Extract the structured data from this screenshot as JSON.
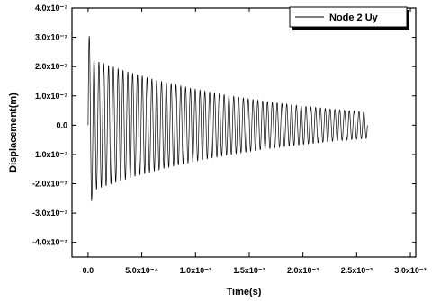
{
  "chart_data": {
    "type": "line",
    "title": "",
    "xlabel": "Time(s)",
    "ylabel": "Displacement(m)",
    "xlim": [
      -0.00015,
      0.00305
    ],
    "ylim": [
      -4.5e-07,
      4e-07
    ],
    "grid": false,
    "legend": {
      "position": "top-right",
      "entries": [
        "Node 2 Uy"
      ]
    },
    "x_ticks": [
      {
        "value": 0.0,
        "label": "0.0"
      },
      {
        "value": 0.0005,
        "label": "5.0x10⁻⁴"
      },
      {
        "value": 0.001,
        "label": "1.0x10⁻³"
      },
      {
        "value": 0.0015,
        "label": "1.5x10⁻³"
      },
      {
        "value": 0.002,
        "label": "2.0x10⁻³"
      },
      {
        "value": 0.0025,
        "label": "2.5x10⁻³"
      },
      {
        "value": 0.003,
        "label": "3.0x10⁻³"
      }
    ],
    "y_ticks": [
      {
        "value": 4e-07,
        "label": "4.0x10⁻⁷"
      },
      {
        "value": 3e-07,
        "label": "3.0x10⁻⁷"
      },
      {
        "value": 2e-07,
        "label": "2.0x10⁻⁷"
      },
      {
        "value": 1e-07,
        "label": "1.0x10⁻⁷"
      },
      {
        "value": 0.0,
        "label": "0.0"
      },
      {
        "value": -1e-07,
        "label": "-1.0x10⁻⁷"
      },
      {
        "value": -2e-07,
        "label": "-2.0x10⁻⁷"
      },
      {
        "value": -3e-07,
        "label": "-3.0x10⁻⁷"
      },
      {
        "value": -4e-07,
        "label": "-4.0x10⁻⁷"
      }
    ],
    "series": [
      {
        "name": "Node 2 Uy",
        "color": "#000000",
        "signal": {
          "t_start": 0.0,
          "t_end": 0.0026,
          "cycles": 58,
          "amplitude_start": 2.3e-07,
          "amplitude_end": 4.5e-08,
          "peak_max": 3.3e-07,
          "peak_min": -3.4e-07
        }
      }
    ]
  }
}
